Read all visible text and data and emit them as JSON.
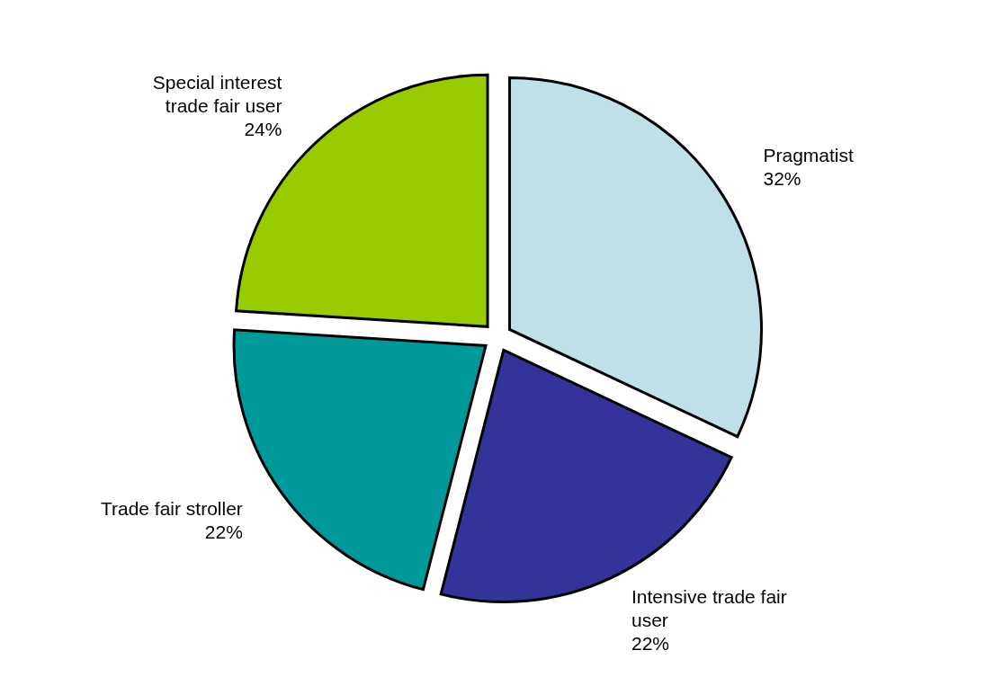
{
  "chart_data": {
    "type": "pie",
    "categories": [
      "Pragmatist",
      "Intensive trade fair user",
      "Trade fair stroller",
      "Special interest trade fair user"
    ],
    "values": [
      32,
      22,
      22,
      24
    ],
    "colors": [
      "#bfe0e6",
      "#333399",
      "#009999",
      "#99cc00"
    ],
    "value_labels": [
      "32%",
      "22%",
      "22%",
      "24%"
    ]
  }
}
